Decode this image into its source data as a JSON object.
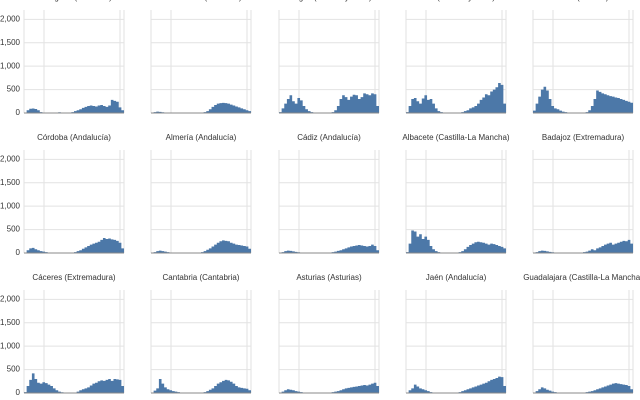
{
  "chart_data": {
    "type": "area",
    "color": "#4c78a8",
    "ylim": [
      0,
      2200
    ],
    "yticks": [
      0,
      {
        "value": 500,
        "label": "500"
      },
      {
        "value": 1000,
        "label": "1,000"
      },
      {
        "value": 1500,
        "label": "1,500"
      },
      {
        "value": 2000,
        "label": "2,000"
      }
    ],
    "grid": true,
    "panels": [
      {
        "title": "Tarragona (Cataluña)",
        "values": [
          10,
          60,
          90,
          95,
          85,
          60,
          20,
          10,
          5,
          5,
          5,
          5,
          10,
          15,
          10,
          5,
          5,
          10,
          20,
          40,
          60,
          80,
          110,
          130,
          150,
          160,
          150,
          140,
          160,
          170,
          150,
          130,
          160,
          280,
          260,
          240,
          120,
          60
        ]
      },
      {
        "title": "Las Palmas (Canarias)",
        "values": [
          5,
          20,
          30,
          25,
          15,
          10,
          5,
          5,
          5,
          5,
          5,
          5,
          5,
          5,
          5,
          5,
          5,
          5,
          5,
          10,
          20,
          40,
          80,
          130,
          170,
          200,
          210,
          215,
          210,
          200,
          180,
          160,
          140,
          120,
          100,
          80,
          60,
          40
        ]
      },
      {
        "title": "Burgos (Castilla y León)",
        "values": [
          20,
          100,
          200,
          300,
          380,
          250,
          200,
          320,
          270,
          150,
          80,
          40,
          20,
          10,
          5,
          5,
          5,
          5,
          5,
          10,
          20,
          60,
          150,
          300,
          380,
          340,
          280,
          350,
          390,
          380,
          300,
          340,
          420,
          400,
          380,
          420,
          400,
          150
        ]
      },
      {
        "title": "León (Castilla y León)",
        "values": [
          20,
          150,
          300,
          320,
          250,
          200,
          310,
          380,
          280,
          300,
          200,
          100,
          40,
          20,
          10,
          5,
          5,
          5,
          5,
          5,
          10,
          20,
          40,
          60,
          100,
          120,
          150,
          200,
          280,
          330,
          400,
          380,
          460,
          500,
          550,
          640,
          600,
          200
        ]
      },
      {
        "title": "Ávila (Castilla)",
        "values": [
          50,
          200,
          350,
          500,
          560,
          480,
          300,
          150,
          100,
          80,
          50,
          30,
          20,
          10,
          5,
          5,
          5,
          5,
          5,
          10,
          20,
          60,
          150,
          300,
          480,
          450,
          420,
          400,
          380,
          360,
          350,
          330,
          320,
          300,
          280,
          260,
          240,
          220
        ]
      },
      {
        "title": "Córdoba (Andalucía)",
        "values": [
          10,
          60,
          100,
          110,
          80,
          60,
          40,
          30,
          20,
          10,
          5,
          5,
          5,
          5,
          5,
          5,
          5,
          5,
          10,
          20,
          40,
          60,
          90,
          120,
          150,
          180,
          200,
          220,
          240,
          280,
          320,
          300,
          310,
          290,
          280,
          260,
          220,
          100
        ]
      },
      {
        "title": "Almería (Andalucía)",
        "values": [
          5,
          20,
          40,
          50,
          40,
          30,
          20,
          10,
          5,
          5,
          5,
          5,
          5,
          5,
          5,
          5,
          5,
          5,
          10,
          20,
          40,
          70,
          100,
          140,
          180,
          220,
          250,
          270,
          260,
          250,
          220,
          200,
          180,
          170,
          160,
          150,
          140,
          90
        ]
      },
      {
        "title": "Cádiz (Andalucía)",
        "values": [
          5,
          20,
          40,
          50,
          45,
          35,
          25,
          15,
          10,
          5,
          5,
          5,
          5,
          5,
          5,
          5,
          5,
          5,
          5,
          10,
          20,
          30,
          45,
          60,
          80,
          100,
          120,
          140,
          150,
          160,
          170,
          160,
          150,
          140,
          150,
          180,
          150,
          60
        ]
      },
      {
        "title": "Albacete (Castilla-La Mancha)",
        "values": [
          20,
          200,
          480,
          460,
          350,
          400,
          300,
          350,
          280,
          150,
          80,
          40,
          20,
          10,
          5,
          5,
          5,
          5,
          5,
          10,
          20,
          40,
          80,
          130,
          170,
          200,
          230,
          240,
          230,
          220,
          200,
          180,
          200,
          190,
          170,
          150,
          130,
          100
        ]
      },
      {
        "title": "Badajoz (Extremadura)",
        "values": [
          5,
          20,
          40,
          50,
          45,
          35,
          25,
          15,
          10,
          5,
          5,
          5,
          5,
          5,
          5,
          5,
          5,
          5,
          10,
          20,
          30,
          50,
          80,
          60,
          100,
          120,
          150,
          180,
          200,
          220,
          180,
          200,
          220,
          240,
          260,
          250,
          280,
          200
        ]
      },
      {
        "title": "Cáceres (Extremadura)",
        "values": [
          20,
          150,
          280,
          420,
          300,
          220,
          200,
          230,
          210,
          180,
          150,
          100,
          60,
          30,
          15,
          10,
          5,
          5,
          5,
          10,
          30,
          60,
          80,
          100,
          120,
          160,
          200,
          220,
          250,
          270,
          260,
          280,
          300,
          260,
          300,
          290,
          280,
          150
        ]
      },
      {
        "title": "Cantabria (Cantabria)",
        "values": [
          10,
          50,
          100,
          300,
          200,
          120,
          80,
          60,
          40,
          30,
          20,
          10,
          5,
          5,
          5,
          5,
          5,
          5,
          5,
          10,
          20,
          40,
          70,
          100,
          150,
          200,
          230,
          260,
          280,
          270,
          240,
          200,
          150,
          120,
          110,
          100,
          90,
          60
        ]
      },
      {
        "title": "Asturias (Asturias)",
        "values": [
          5,
          30,
          60,
          80,
          70,
          60,
          40,
          30,
          20,
          10,
          5,
          5,
          5,
          5,
          5,
          5,
          5,
          5,
          5,
          10,
          20,
          30,
          40,
          60,
          80,
          100,
          110,
          120,
          130,
          140,
          150,
          160,
          170,
          160,
          180,
          200,
          220,
          150
        ]
      },
      {
        "title": "Jaén (Andalucía)",
        "values": [
          5,
          60,
          100,
          180,
          140,
          100,
          80,
          60,
          40,
          20,
          10,
          5,
          5,
          5,
          5,
          5,
          5,
          5,
          5,
          10,
          20,
          40,
          60,
          80,
          100,
          120,
          140,
          160,
          180,
          200,
          220,
          250,
          280,
          300,
          320,
          350,
          340,
          150
        ]
      },
      {
        "title": "Guadalajara (Castilla-La Mancha)",
        "values": [
          5,
          40,
          80,
          120,
          100,
          70,
          50,
          30,
          20,
          10,
          5,
          5,
          5,
          5,
          5,
          5,
          5,
          5,
          5,
          10,
          20,
          30,
          40,
          60,
          80,
          100,
          120,
          140,
          160,
          180,
          200,
          210,
          200,
          190,
          180,
          170,
          150,
          80
        ]
      }
    ]
  }
}
